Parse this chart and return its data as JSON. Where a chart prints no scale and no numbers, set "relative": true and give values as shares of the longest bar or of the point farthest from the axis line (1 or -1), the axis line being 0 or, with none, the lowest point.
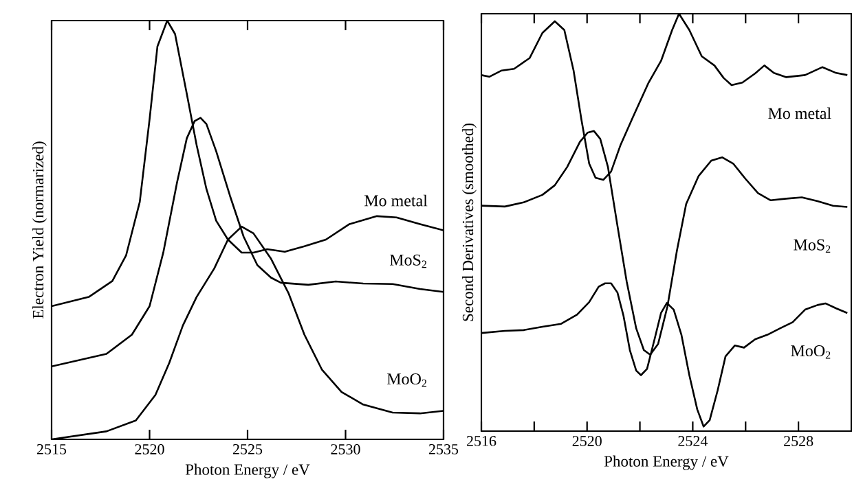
{
  "chart_data": [
    {
      "type": "line",
      "relative": true,
      "xlabel": "Photon Energy / eV",
      "ylabel": "Electron Yield (normarized)",
      "xlim": [
        2515,
        2535
      ],
      "xticks": [
        2515,
        2520,
        2525,
        2530,
        2535
      ],
      "series": [
        {
          "name": "Mo metal",
          "color": "#000000",
          "x": [
            2515,
            2516.9,
            2518.1,
            2518.8,
            2519.5,
            2520.0,
            2520.4,
            2520.9,
            2521.3,
            2521.9,
            2522.4,
            2522.9,
            2523.4,
            2524.0,
            2524.7,
            2525.3,
            2526.0,
            2526.9,
            2527.9,
            2529.0,
            2530.2,
            2531.6,
            2532.6,
            2533.8,
            2535
          ],
          "values": [
            0.318,
            0.34,
            0.378,
            0.439,
            0.567,
            0.764,
            0.938,
            1.0,
            0.968,
            0.825,
            0.703,
            0.598,
            0.522,
            0.477,
            0.446,
            0.446,
            0.454,
            0.448,
            0.461,
            0.477,
            0.514,
            0.533,
            0.53,
            0.514,
            0.499
          ]
        },
        {
          "name": "MoS$_{2}$",
          "color": "#000000",
          "x": [
            2515,
            2517.8,
            2519.1,
            2520.0,
            2520.7,
            2521.4,
            2521.9,
            2522.3,
            2522.6,
            2522.9,
            2523.4,
            2524.1,
            2524.8,
            2525.5,
            2526.2,
            2526.7,
            2528.1,
            2529.5,
            2530.9,
            2532.4,
            2533.8,
            2535
          ],
          "values": [
            0.174,
            0.204,
            0.25,
            0.318,
            0.446,
            0.613,
            0.719,
            0.76,
            0.768,
            0.753,
            0.688,
            0.582,
            0.484,
            0.416,
            0.386,
            0.374,
            0.369,
            0.377,
            0.372,
            0.371,
            0.359,
            0.352
          ]
        },
        {
          "name": "MoO$_{2}$",
          "color": "#000000",
          "x": [
            2515,
            2517.8,
            2519.3,
            2520.3,
            2521.0,
            2521.7,
            2522.4,
            2523.3,
            2524.0,
            2524.7,
            2525.3,
            2526.2,
            2527.1,
            2527.9,
            2528.8,
            2529.8,
            2530.9,
            2532.4,
            2533.8,
            2535
          ],
          "values": [
            0.0,
            0.019,
            0.045,
            0.106,
            0.182,
            0.272,
            0.34,
            0.408,
            0.477,
            0.508,
            0.492,
            0.431,
            0.348,
            0.25,
            0.166,
            0.113,
            0.083,
            0.064,
            0.062,
            0.068
          ]
        }
      ]
    },
    {
      "type": "line",
      "relative": true,
      "xlabel": "Photon Energy / eV",
      "ylabel": "Second Derivatives (smoothed)",
      "xlim": [
        2516,
        2530
      ],
      "xticks": [
        2516,
        {
          "value": 2518,
          "label": null
        },
        2520,
        {
          "value": 2522,
          "label": null
        },
        2524,
        {
          "value": 2526,
          "label": null
        },
        2528
      ],
      "series": [
        {
          "name": "Mo metal",
          "color": "#000000",
          "x": [
            2516.0,
            2516.3,
            2516.77,
            2517.24,
            2517.83,
            2518.31,
            2518.78,
            2519.14,
            2519.49,
            2519.79,
            2520.08,
            2520.32,
            2520.62,
            2520.91,
            2521.27,
            2521.74,
            2522.33,
            2522.8,
            2523.22,
            2523.48,
            2523.87,
            2524.34,
            2524.82,
            2525.17,
            2525.47,
            2525.88,
            2526.36,
            2526.71,
            2527.07,
            2527.54,
            2528.25,
            2528.9,
            2529.43,
            2529.85
          ],
          "values": [
            0.853,
            0.849,
            0.864,
            0.868,
            0.894,
            0.954,
            0.982,
            0.961,
            0.864,
            0.745,
            0.641,
            0.607,
            0.602,
            0.622,
            0.686,
            0.753,
            0.835,
            0.887,
            0.961,
            1.0,
            0.961,
            0.898,
            0.876,
            0.846,
            0.829,
            0.835,
            0.857,
            0.876,
            0.858,
            0.848,
            0.853,
            0.872,
            0.858,
            0.853
          ]
        },
        {
          "name": "MoS$_{2}$",
          "color": "#000000",
          "x": [
            2516.0,
            2516.89,
            2517.6,
            2518.31,
            2518.78,
            2519.25,
            2519.73,
            2520.02,
            2520.26,
            2520.5,
            2520.79,
            2521.15,
            2521.5,
            2521.86,
            2522.15,
            2522.39,
            2522.69,
            2523.04,
            2523.4,
            2523.75,
            2524.22,
            2524.7,
            2525.11,
            2525.53,
            2526.0,
            2526.47,
            2526.95,
            2527.54,
            2528.13,
            2528.72,
            2529.31,
            2529.85
          ],
          "values": [
            0.54,
            0.538,
            0.548,
            0.566,
            0.589,
            0.633,
            0.693,
            0.715,
            0.719,
            0.7,
            0.633,
            0.492,
            0.358,
            0.246,
            0.194,
            0.183,
            0.209,
            0.298,
            0.432,
            0.544,
            0.611,
            0.648,
            0.656,
            0.641,
            0.604,
            0.57,
            0.553,
            0.557,
            0.56,
            0.551,
            0.54,
            0.537
          ]
        },
        {
          "name": "MoO$_{2}$",
          "color": "#000000",
          "x": [
            2516.0,
            2516.89,
            2517.6,
            2518.31,
            2519.02,
            2519.62,
            2520.08,
            2520.44,
            2520.68,
            2520.91,
            2521.15,
            2521.38,
            2521.62,
            2521.86,
            2522.04,
            2522.27,
            2522.57,
            2522.8,
            2523.02,
            2523.28,
            2523.57,
            2523.87,
            2524.17,
            2524.41,
            2524.64,
            2524.94,
            2525.24,
            2525.59,
            2525.94,
            2526.36,
            2526.83,
            2527.3,
            2527.78,
            2528.25,
            2528.72,
            2529.02,
            2529.43,
            2529.85
          ],
          "values": [
            0.235,
            0.24,
            0.242,
            0.25,
            0.257,
            0.279,
            0.309,
            0.346,
            0.354,
            0.354,
            0.332,
            0.276,
            0.194,
            0.145,
            0.134,
            0.149,
            0.224,
            0.283,
            0.307,
            0.291,
            0.231,
            0.134,
            0.052,
            0.011,
            0.026,
            0.097,
            0.179,
            0.205,
            0.2,
            0.22,
            0.231,
            0.246,
            0.261,
            0.291,
            0.302,
            0.306,
            0.294,
            0.283
          ]
        }
      ]
    }
  ]
}
